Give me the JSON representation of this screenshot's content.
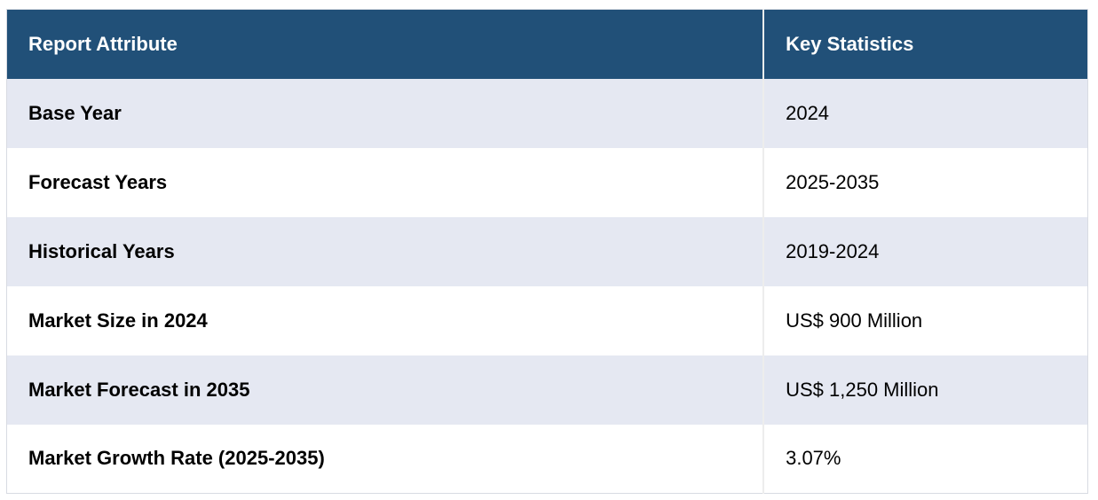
{
  "chart_data": {
    "type": "table",
    "columns": [
      "Report Attribute",
      "Key Statistics"
    ],
    "rows": [
      {
        "attribute": "Base Year",
        "value": "2024"
      },
      {
        "attribute": "Forecast Years",
        "value": "2025-2035"
      },
      {
        "attribute": "Historical Years",
        "value": "2019-2024"
      },
      {
        "attribute": "Market Size in 2024",
        "value": "US$ 900 Million"
      },
      {
        "attribute": "Market Forecast in 2035",
        "value": "US$ 1,250 Million"
      },
      {
        "attribute": "Market Growth Rate (2025-2035)",
        "value": "3.07%"
      }
    ],
    "layout": {
      "legend": "none",
      "grid": "off",
      "header_position": "top",
      "column_split": "70/30"
    }
  },
  "colors": {
    "header_bg": "#215078",
    "header_text": "#ffffff",
    "row_bg": "#ffffff",
    "row_alt_bg": "#e5e8f2",
    "body_text": "#000000",
    "outer_border": "#d8dbe2",
    "column_divider": "#ededed"
  }
}
